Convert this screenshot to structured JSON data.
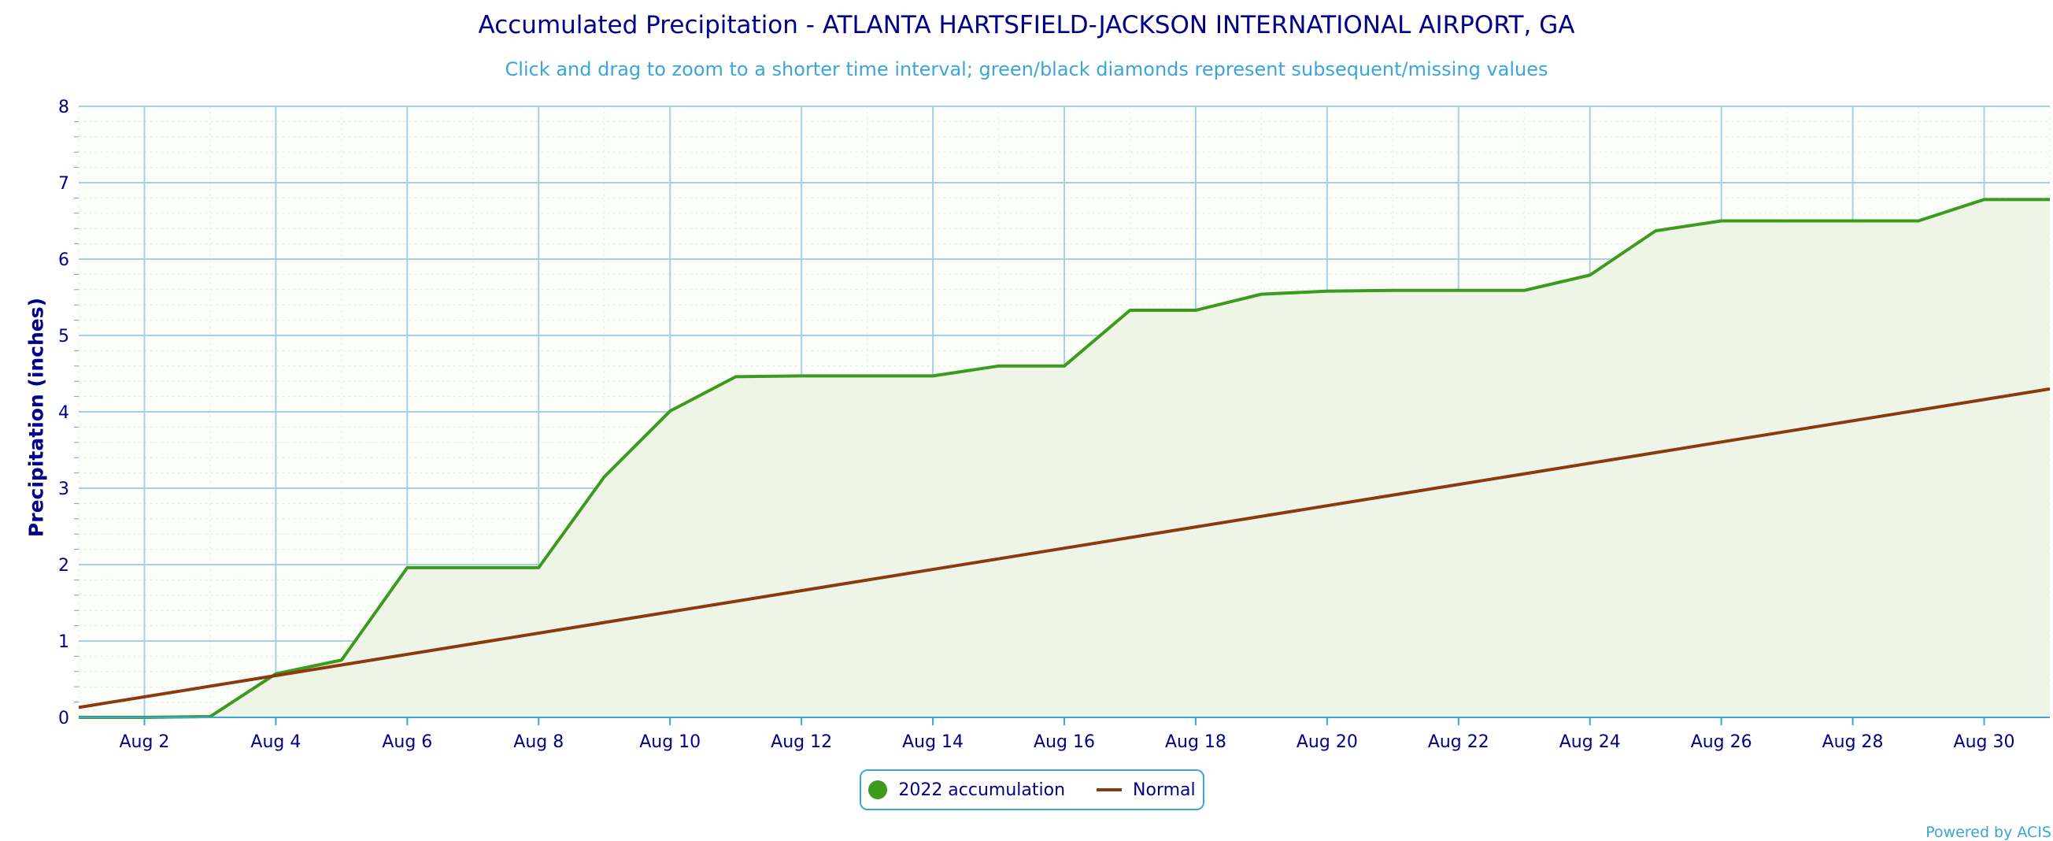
{
  "chart_data": {
    "type": "area",
    "title": "Accumulated Precipitation - ATLANTA HARTSFIELD-JACKSON INTERNATIONAL AIRPORT, GA",
    "subtitle": "Click and drag to zoom to a shorter time interval; green/black diamonds represent subsequent/missing values",
    "xlabel": "",
    "ylabel": "Precipitation (inches)",
    "ylim": [
      0,
      8
    ],
    "xlim": [
      1,
      31
    ],
    "grid": true,
    "legend_position": "bottom-center",
    "y_ticks": [
      "0",
      "1",
      "2",
      "3",
      "4",
      "5",
      "6",
      "7",
      "8"
    ],
    "x_tick_labels": [
      {
        "day": 2,
        "label": "Aug 2"
      },
      {
        "day": 4,
        "label": "Aug 4"
      },
      {
        "day": 6,
        "label": "Aug 6"
      },
      {
        "day": 8,
        "label": "Aug 8"
      },
      {
        "day": 10,
        "label": "Aug 10"
      },
      {
        "day": 12,
        "label": "Aug 12"
      },
      {
        "day": 14,
        "label": "Aug 14"
      },
      {
        "day": 16,
        "label": "Aug 16"
      },
      {
        "day": 18,
        "label": "Aug 18"
      },
      {
        "day": 20,
        "label": "Aug 20"
      },
      {
        "day": 22,
        "label": "Aug 22"
      },
      {
        "day": 24,
        "label": "Aug 24"
      },
      {
        "day": 26,
        "label": "Aug 26"
      },
      {
        "day": 28,
        "label": "Aug 28"
      },
      {
        "day": 30,
        "label": "Aug 30"
      }
    ],
    "series": [
      {
        "name": "2022 accumulation",
        "color": "#3c9a1e",
        "fill": "#eef5e6",
        "x": [
          1,
          2,
          3,
          4,
          5,
          6,
          7,
          8,
          9,
          10,
          11,
          12,
          13,
          14,
          15,
          16,
          17,
          18,
          19,
          20,
          21,
          22,
          23,
          24,
          25,
          26,
          27,
          28,
          29,
          30,
          31
        ],
        "y": [
          0.0,
          0.0,
          0.01,
          0.57,
          0.75,
          1.96,
          1.96,
          1.96,
          3.15,
          4.01,
          4.46,
          4.47,
          4.47,
          4.47,
          4.6,
          4.6,
          5.33,
          5.33,
          5.54,
          5.58,
          5.59,
          5.59,
          5.59,
          5.79,
          6.37,
          6.5,
          6.5,
          6.5,
          6.5,
          6.78,
          6.78
        ]
      },
      {
        "name": "Normal",
        "color": "#8b3a0e",
        "x": [
          1,
          31
        ],
        "y": [
          0.13,
          4.3
        ]
      }
    ]
  },
  "legend": {
    "items": [
      {
        "label": "2022 accumulation",
        "color": "#3c9a1e"
      },
      {
        "label": "Normal",
        "color": "#8b3a0e"
      }
    ]
  },
  "credit": "Powered by ACIS"
}
